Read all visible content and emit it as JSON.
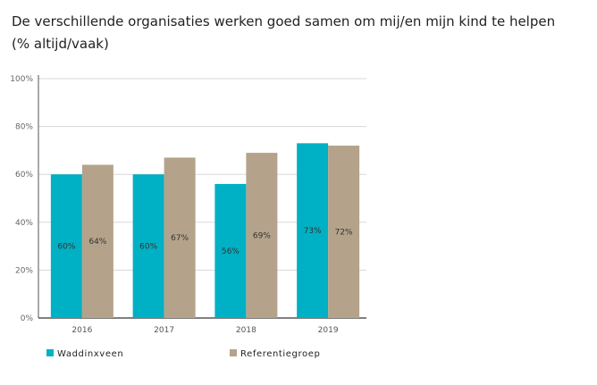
{
  "chart_data": {
    "type": "bar",
    "title_line1": "De verschillende organisaties werken goed samen om mij/en mijn kind te helpen",
    "title_line2": "(% altijd/vaak)",
    "categories": [
      "2016",
      "2017",
      "2018",
      "2019"
    ],
    "series": [
      {
        "name": "Waddinxveen",
        "color": "#00b0c4",
        "values": [
          60,
          60,
          56,
          73
        ],
        "labels": [
          "60%",
          "60%",
          "56%",
          "73%"
        ]
      },
      {
        "name": "Referentiegroep",
        "color": "#b4a38a",
        "values": [
          64,
          67,
          69,
          72
        ],
        "labels": [
          "64%",
          "67%",
          "69%",
          "72%"
        ]
      }
    ],
    "ylim": [
      0,
      100
    ],
    "yticks": [
      "0%",
      "20%",
      "40%",
      "60%",
      "80%",
      "100%"
    ],
    "grid": true,
    "legend": "bottom"
  }
}
